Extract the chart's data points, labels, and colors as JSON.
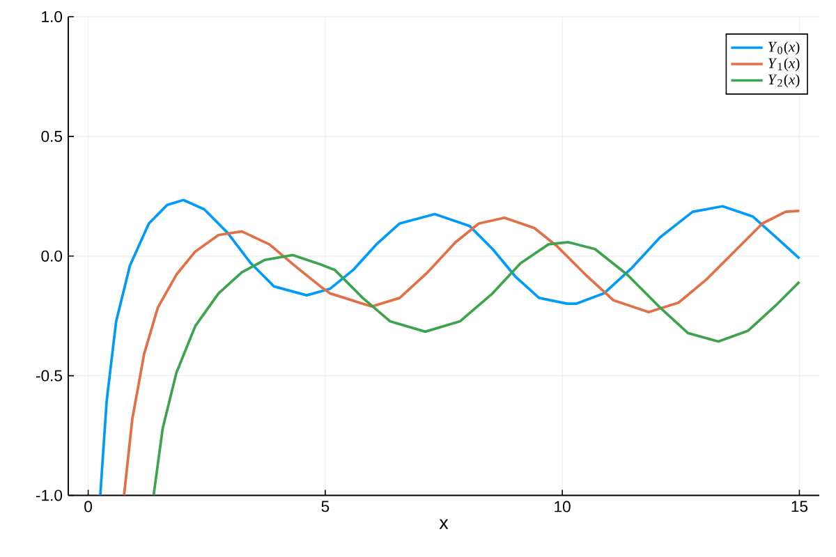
{
  "chart_data": {
    "type": "line",
    "xlabel": "x",
    "xlim": [
      -0.42,
      15.42
    ],
    "ylim": [
      -1,
      1
    ],
    "xticks": [
      0,
      5,
      10,
      15
    ],
    "yticks": [
      {
        "value": -1,
        "label": "-1.0"
      },
      {
        "value": -0.5,
        "label": "-0.5"
      },
      {
        "value": 0,
        "label": "0.0"
      },
      {
        "value": 0.5,
        "label": "0.5"
      },
      {
        "value": 1,
        "label": "1.0"
      }
    ],
    "grid": true,
    "legend": "top right",
    "marker": "none",
    "line_style": "solid",
    "series": [
      {
        "name": "*Y*$_{0}$(*x*)",
        "color": "#009af9",
        "x": [
          0.255,
          0.39,
          0.59,
          0.88,
          1.28,
          1.67,
          2.01,
          2.45,
          2.94,
          3.43,
          3.92,
          4.61,
          5.1,
          5.59,
          6.08,
          6.57,
          7.31,
          8.04,
          8.53,
          9.02,
          9.51,
          10.1,
          10.29,
          10.88,
          11.47,
          12.06,
          12.75,
          13.38,
          14.02,
          14.51,
          15.0
        ],
        "values": [
          -1,
          -0.605,
          -0.273,
          -0.04,
          0.136,
          0.214,
          0.234,
          0.195,
          0.097,
          -0.03,
          -0.127,
          -0.164,
          -0.137,
          -0.058,
          0.049,
          0.136,
          0.175,
          0.126,
          0.029,
          -0.088,
          -0.175,
          -0.199,
          -0.199,
          -0.156,
          -0.049,
          0.078,
          0.185,
          0.208,
          0.165,
          0.078,
          -0.01
        ]
      },
      {
        "name": "*Y*$_{1}$(*x*)",
        "color": "#e26f46",
        "x": [
          0.756,
          0.93,
          1.18,
          1.47,
          1.86,
          2.26,
          2.75,
          3.24,
          3.82,
          4.41,
          4.9,
          5.1,
          5.98,
          6.57,
          7.16,
          7.75,
          8.24,
          8.78,
          9.41,
          9.9,
          10.49,
          11.08,
          11.82,
          12.45,
          13.04,
          13.63,
          14.22,
          14.71,
          15.0
        ],
        "values": [
          -1,
          -0.682,
          -0.409,
          -0.215,
          -0.078,
          0.019,
          0.088,
          0.103,
          0.049,
          -0.049,
          -0.127,
          -0.156,
          -0.211,
          -0.175,
          -0.068,
          0.058,
          0.136,
          0.16,
          0.117,
          0.039,
          -0.078,
          -0.185,
          -0.234,
          -0.195,
          -0.098,
          0.019,
          0.136,
          0.185,
          0.189
        ]
      },
      {
        "name": "*Y*$_{2}$(*x*)",
        "color": "#3da44d",
        "x": [
          1.38,
          1.57,
          1.86,
          2.26,
          2.75,
          3.24,
          3.73,
          4.31,
          4.9,
          5.2,
          5.79,
          6.37,
          7.11,
          7.84,
          8.53,
          9.12,
          9.71,
          10.12,
          10.69,
          11.37,
          12.06,
          12.65,
          13.29,
          13.92,
          14.51,
          15.0
        ],
        "values": [
          -1,
          -0.722,
          -0.488,
          -0.292,
          -0.156,
          -0.068,
          -0.016,
          0.004,
          -0.035,
          -0.058,
          -0.175,
          -0.273,
          -0.316,
          -0.273,
          -0.156,
          -0.03,
          0.049,
          0.058,
          0.029,
          -0.078,
          -0.215,
          -0.322,
          -0.357,
          -0.312,
          -0.205,
          -0.108
        ]
      }
    ]
  }
}
